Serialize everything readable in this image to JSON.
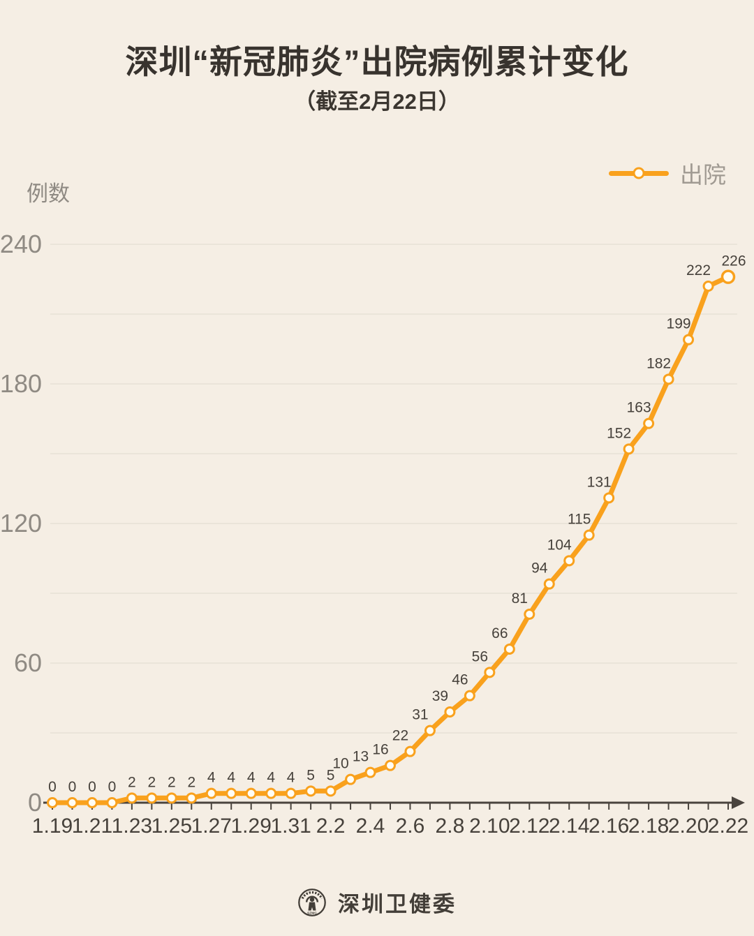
{
  "header": {
    "title": "深圳“新冠肺炎”出院病例累计变化",
    "subtitle": "（截至2月22日）"
  },
  "legend": {
    "label": "出院"
  },
  "chart_data": {
    "type": "line",
    "title": "深圳“新冠肺炎”出院病例累计变化",
    "subtitle": "（截至2月22日）",
    "ylabel": "例数",
    "xlabel": "",
    "series": [
      {
        "name": "出院",
        "x": [
          "1.19",
          "1.20",
          "1.21",
          "1.22",
          "1.23",
          "1.24",
          "1.25",
          "1.26",
          "1.27",
          "1.28",
          "1.29",
          "1.30",
          "1.31",
          "2.1",
          "2.2",
          "2.3",
          "2.4",
          "2.5",
          "2.6",
          "2.7",
          "2.8",
          "2.9",
          "2.10",
          "2.11",
          "2.12",
          "2.13",
          "2.14",
          "2.15",
          "2.16",
          "2.17",
          "2.18",
          "2.19",
          "2.20",
          "2.21",
          "2.22"
        ],
        "values": [
          0,
          0,
          0,
          0,
          2,
          2,
          2,
          2,
          4,
          4,
          4,
          4,
          4,
          5,
          5,
          10,
          13,
          16,
          22,
          31,
          39,
          46,
          56,
          66,
          81,
          94,
          104,
          115,
          131,
          152,
          163,
          182,
          199,
          222,
          226
        ]
      }
    ],
    "x_tick_labels": [
      "1.19",
      "1.21",
      "1.23",
      "1.25",
      "1.27",
      "1.29",
      "1.31",
      "2.2",
      "2.4",
      "2.6",
      "2.8",
      "2.10",
      "2.12",
      "2.14",
      "2.16",
      "2.18",
      "2.20",
      "2.22"
    ],
    "y_tick_labels": [
      0,
      60,
      120,
      180,
      240
    ],
    "ylim": [
      0,
      240
    ],
    "grid_interval": 30,
    "grid_on": true,
    "point_labels_visible": true,
    "legend_position": "top-right"
  },
  "colors": {
    "background": "#f5eee4",
    "line": "#f9a11d",
    "marker_fill": "#fffdf4",
    "grid": "#e4ddd2",
    "axis": "#4a443e",
    "label_dark": "#46413b",
    "label_gray": "#8f8a83",
    "legend_text": "#a09a92"
  },
  "footer": {
    "org_name": "深圳卫健委",
    "logo_text": "SZMC"
  }
}
